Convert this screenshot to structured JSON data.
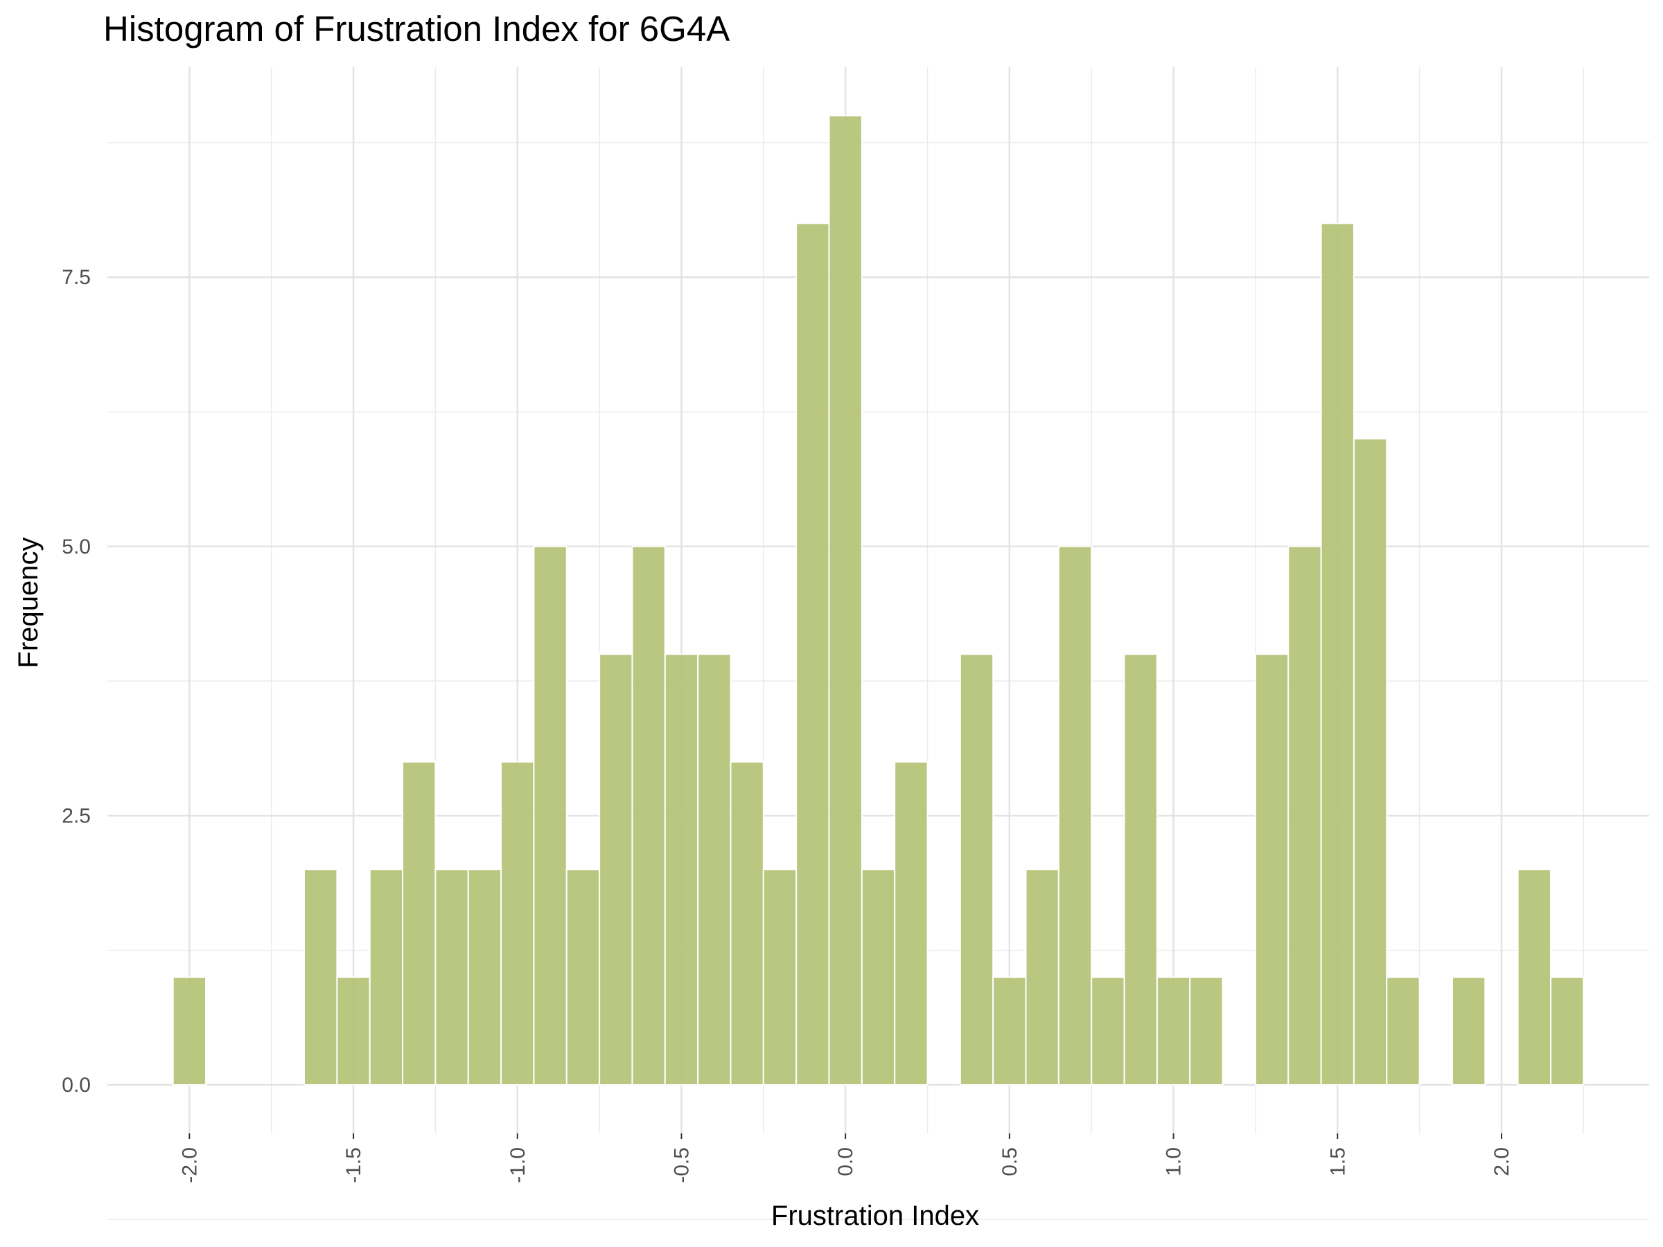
{
  "chart_data": {
    "type": "bar",
    "title": "Histogram of Frustration Index for 6G4A",
    "xlabel": "Frustration Index",
    "ylabel": "Frequency",
    "bin_width": 0.1,
    "x": [
      -2.0,
      -1.6,
      -1.5,
      -1.4,
      -1.3,
      -1.2,
      -1.1,
      -1.0,
      -0.9,
      -0.8,
      -0.7,
      -0.6,
      -0.5,
      -0.4,
      -0.3,
      -0.2,
      -0.1,
      0.0,
      0.1,
      0.2,
      0.4,
      0.5,
      0.6,
      0.7,
      0.8,
      0.9,
      1.0,
      1.1,
      1.3,
      1.4,
      1.5,
      1.6,
      1.7,
      1.9,
      2.1,
      2.2
    ],
    "values": [
      1,
      2,
      1,
      2,
      3,
      2,
      2,
      3,
      5,
      2,
      4,
      5,
      4,
      4,
      3,
      2,
      8,
      9,
      2,
      3,
      4,
      1,
      2,
      5,
      1,
      4,
      1,
      1,
      4,
      5,
      8,
      6,
      1,
      1,
      2,
      1
    ],
    "xlim": [
      -2.25,
      2.45
    ],
    "ylim": [
      -0.45,
      9.45
    ],
    "x_ticks": [
      "-2.0",
      "-1.5",
      "-1.0",
      "-0.5",
      "0.0",
      "0.5",
      "1.0",
      "1.5",
      "2.0"
    ],
    "y_ticks": [
      "0.0",
      "2.5",
      "5.0",
      "7.5"
    ],
    "grid": true,
    "bar_color": "#b2c173",
    "bar_border_color": "#ffffff"
  }
}
